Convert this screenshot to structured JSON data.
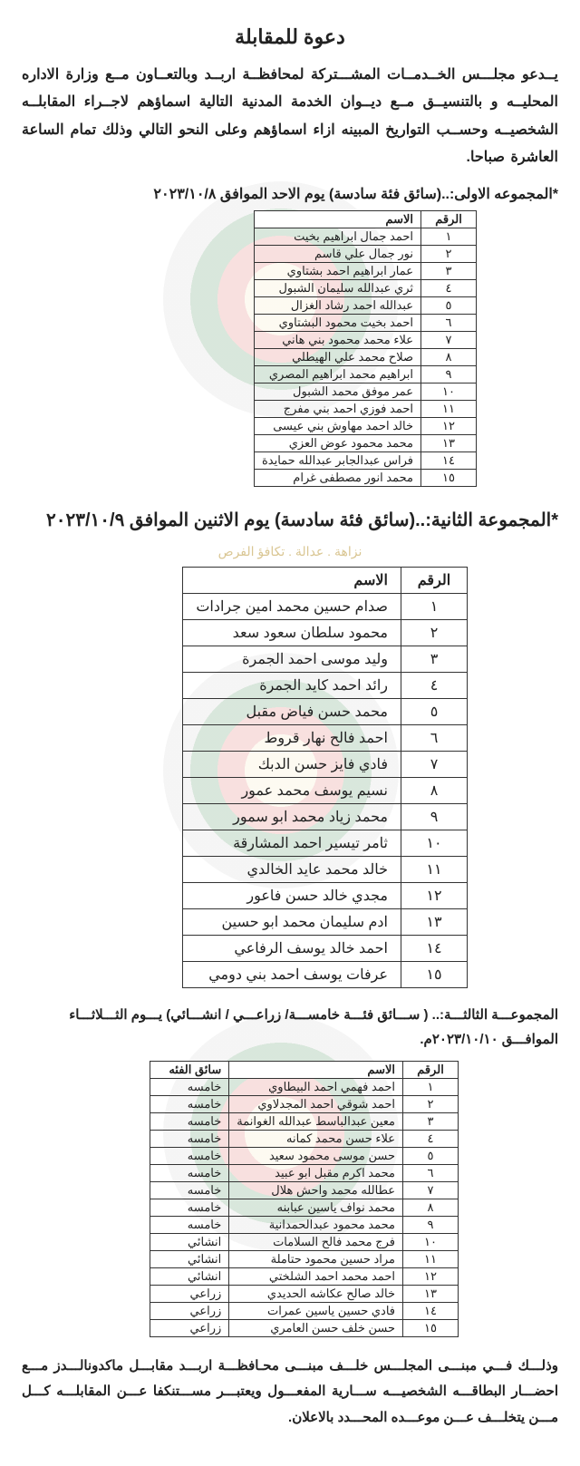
{
  "title": "دعوة للمقابلة",
  "intro": "يــدعو مجلـــس الخــدمــات المشـــتركة لمحافظــة اربــد وبالتعــاون مــع وزارة الاداره المحليــه و بالتنسيــق مــع ديــوان الخدمة المدنية التالية اسماؤهم لاجــراء المقابلــه الشخصيــه وحســب التواريخ المبينه ازاء اسماؤهم وعلى النحو التالي وذلك تمام الساعة العاشرة صباحا.",
  "group1_head": "*المجموعه الاولى:..(سائق فئة سادسة) يوم الاحد الموافق ٢٠٢٣/١٠/٨",
  "group2_head": "*المجموعة الثانية:..(سائق فئة سادسة) يوم الاثنين الموافق ٢٠٢٣/١٠/٩",
  "group3_head": "المجموعـــة الثالثـــة:.. ( ســـائق فئـــة خامســـة/ زراعـــي / انشـــائي) يـــوم الثـــلاثـــاء الموافـــق ٢٠٢٣/١٠/١٠م.",
  "slogan": "نزاهة . عدالة . تكافؤ الفرص",
  "table_headers": {
    "num": "الرقم",
    "name": "الاسم",
    "category": "سائق الفئه"
  },
  "group1_rows": [
    {
      "n": "١",
      "name": "احمد جمال ابراهيم بخيت"
    },
    {
      "n": "٢",
      "name": "نور جمال علي قاسم"
    },
    {
      "n": "٣",
      "name": "عمار ابراهيم احمد بشتاوي"
    },
    {
      "n": "٤",
      "name": "ثري عبدالله سليمان الشبول"
    },
    {
      "n": "٥",
      "name": "عبدالله احمد رشاد الغزال"
    },
    {
      "n": "٦",
      "name": "احمد بخيت محمود البشتاوي"
    },
    {
      "n": "٧",
      "name": "علاء محمد محمود بني هاني"
    },
    {
      "n": "٨",
      "name": "صلاح محمد علي الهيطلي"
    },
    {
      "n": "٩",
      "name": "ابراهيم محمد ابراهيم المصري"
    },
    {
      "n": "١٠",
      "name": "عمر موفق محمد الشبول"
    },
    {
      "n": "١١",
      "name": "احمد فوزي احمد بني مفرج"
    },
    {
      "n": "١٢",
      "name": "خالد احمد مهاوش بني عيسى"
    },
    {
      "n": "١٣",
      "name": "محمد محمود عوض العزي"
    },
    {
      "n": "١٤",
      "name": "فراس عبدالجابر عبدالله حمايدة"
    },
    {
      "n": "١٥",
      "name": "محمد انور مصطفى غرام"
    }
  ],
  "group2_rows": [
    {
      "n": "١",
      "name": "صدام حسين محمد امين جرادات"
    },
    {
      "n": "٢",
      "name": "محمود سلطان سعود سعد"
    },
    {
      "n": "٣",
      "name": "وليد موسى احمد الجمرة"
    },
    {
      "n": "٤",
      "name": "رائد احمد كايد الجمرة"
    },
    {
      "n": "٥",
      "name": "محمد حسن فياض مقبل"
    },
    {
      "n": "٦",
      "name": "احمد فالح نهار قروط"
    },
    {
      "n": "٧",
      "name": "فادي فايز حسن الدبك"
    },
    {
      "n": "٨",
      "name": "نسيم يوسف محمد عمور"
    },
    {
      "n": "٩",
      "name": "محمد زياد محمد ابو سمور"
    },
    {
      "n": "١٠",
      "name": "ثامر تيسير احمد المشارقة"
    },
    {
      "n": "١١",
      "name": "خالد محمد عايد الخالدي"
    },
    {
      "n": "١٢",
      "name": "مجدي خالد حسن فاعور"
    },
    {
      "n": "١٣",
      "name": "ادم سليمان محمد ابو حسين"
    },
    {
      "n": "١٤",
      "name": "احمد خالد يوسف الرفاعي"
    },
    {
      "n": "١٥",
      "name": "عرفات يوسف احمد بني دومي"
    }
  ],
  "group3_rows": [
    {
      "n": "١",
      "name": "احمد فهمي احمد البيطاوي",
      "cat": "خامسه"
    },
    {
      "n": "٢",
      "name": "احمد شوقي احمد المجدلاوي",
      "cat": "خامسه"
    },
    {
      "n": "٣",
      "name": "معين عبدالباسط عبدالله الغوانمة",
      "cat": "خامسه"
    },
    {
      "n": "٤",
      "name": "علاء حسن محمد كمانه",
      "cat": "خامسه"
    },
    {
      "n": "٥",
      "name": "حسن موسى محمود سعيد",
      "cat": "خامسه"
    },
    {
      "n": "٦",
      "name": "محمد اكرم مقبل ابو عبيد",
      "cat": "خامسه"
    },
    {
      "n": "٧",
      "name": "عطالله محمد واحش هلال",
      "cat": "خامسه"
    },
    {
      "n": "٨",
      "name": "محمد نواف ياسين عبابنه",
      "cat": "خامسه"
    },
    {
      "n": "٩",
      "name": "محمد محمود عبدالحمدانية",
      "cat": "خامسه"
    },
    {
      "n": "١٠",
      "name": "فرج محمد فالح السلامات",
      "cat": "انشائي"
    },
    {
      "n": "١١",
      "name": "مراد حسين محمود حتاملة",
      "cat": "انشائي"
    },
    {
      "n": "١٢",
      "name": "احمد محمد احمد الشلختي",
      "cat": "انشائي"
    },
    {
      "n": "١٣",
      "name": "خالد صالح عكاشه الحديدي",
      "cat": "زراعي"
    },
    {
      "n": "١٤",
      "name": "فادي حسين ياسين عمرات",
      "cat": "زراعي"
    },
    {
      "n": "١٥",
      "name": "حسن خلف حسن العامري",
      "cat": "زراعي"
    }
  ],
  "footer": "وذلـــك فـــي مبنـــى المجلـــس خلـــف مبنـــى محـافظـــة اربـــد مقابـــل ماكدونالـــدز مـــع احضـــار البطاقـــه الشخصيـــه ســـارية المفعـــول ويعتبـــر مســـتنكفا عـــن المقابلـــه كـــل مـــن يتخلـــف عـــن موعـــده المحـــدد بالاعلان."
}
